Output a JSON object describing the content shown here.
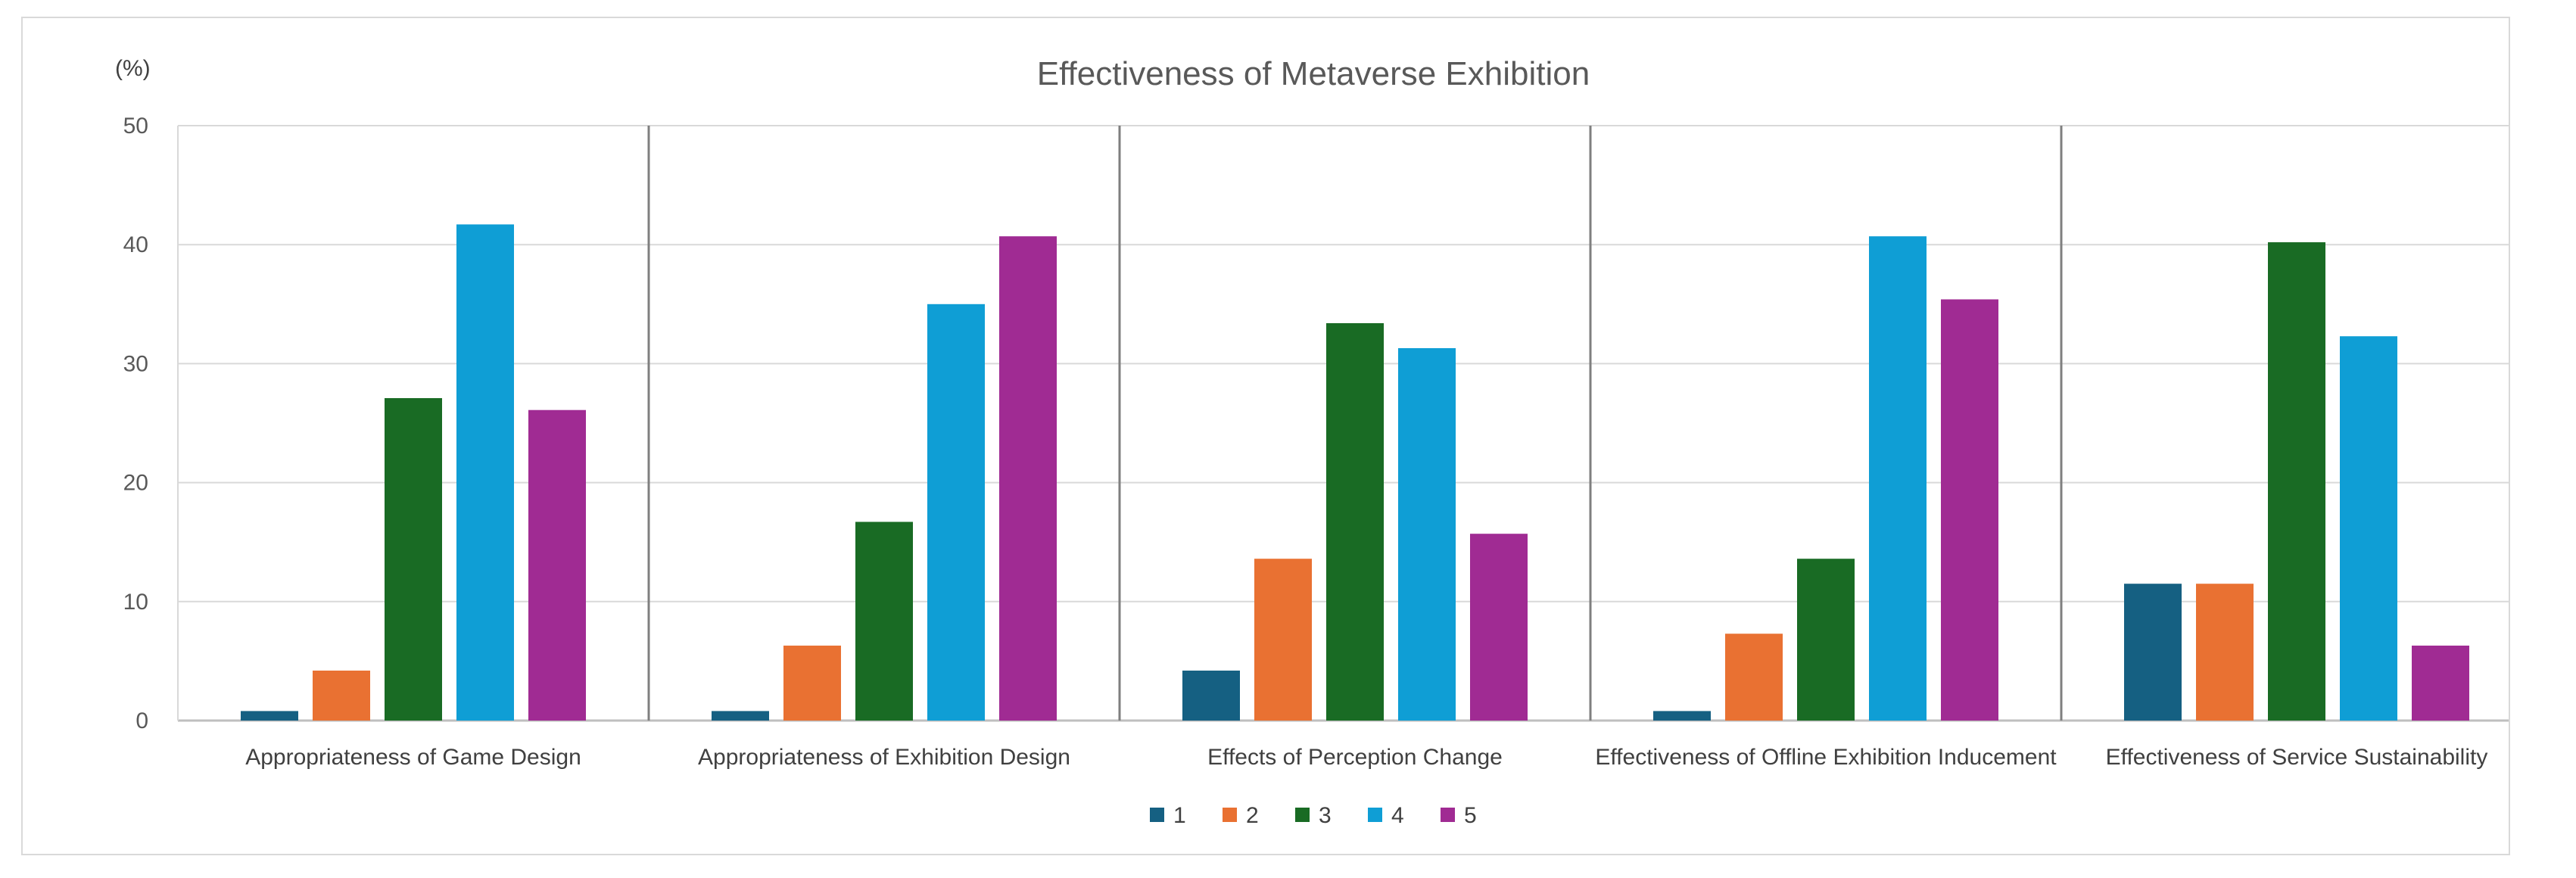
{
  "chart_data": {
    "type": "bar",
    "title": "Effectiveness of Metaverse Exhibition",
    "unit_label": "(%)",
    "xlabel": "",
    "ylabel": "(%)",
    "ylim": [
      0,
      50
    ],
    "yticks": [
      0,
      10,
      20,
      30,
      40,
      50
    ],
    "grid": true,
    "legend_position": "bottom",
    "categories": [
      "Appropriateness of Game Design",
      "Appropriateness of Exhibition Design",
      "Effects of Perception Change",
      "Effectiveness of Offline Exhibition Inducement",
      "Effectiveness of Service Sustainability"
    ],
    "series": [
      {
        "name": "1",
        "color": "#156082",
        "values": [
          0.8,
          0.8,
          4.2,
          0.8,
          11.5
        ]
      },
      {
        "name": "2",
        "color": "#E97132",
        "values": [
          4.2,
          6.3,
          13.6,
          7.3,
          11.5
        ]
      },
      {
        "name": "3",
        "color": "#196B24",
        "values": [
          27.1,
          16.7,
          33.4,
          13.6,
          40.2
        ]
      },
      {
        "name": "4",
        "color": "#0F9ED5",
        "values": [
          41.7,
          35.0,
          31.3,
          40.7,
          32.3
        ]
      },
      {
        "name": "5",
        "color": "#A02B93",
        "values": [
          26.1,
          40.7,
          15.7,
          35.4,
          6.3
        ]
      }
    ]
  }
}
